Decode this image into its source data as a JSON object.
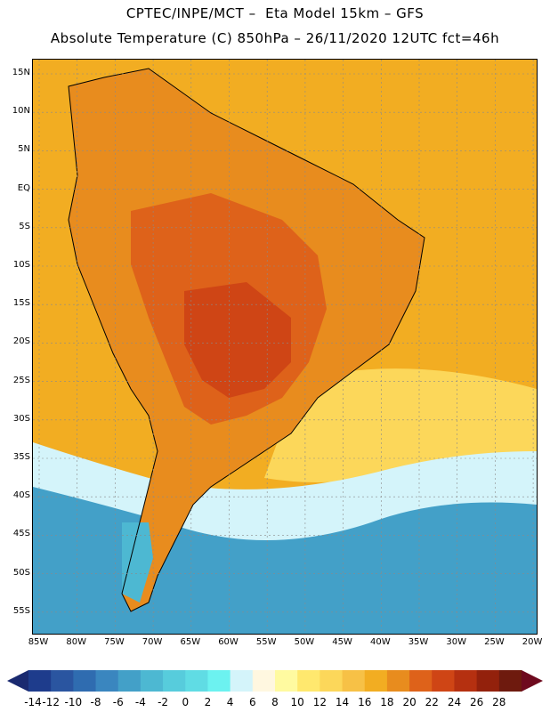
{
  "title_line1": "CPTEC/INPE/MCT –  Eta Model 15km – GFS",
  "title_line2": "Absolute Temperature (C) 850hPa – 26/11/2020 12UTC fct=46h",
  "lat_labels": [
    "15N",
    "10N",
    "5N",
    "EQ",
    "5S",
    "10S",
    "15S",
    "20S",
    "25S",
    "30S",
    "35S",
    "40S",
    "45S",
    "50S",
    "55S"
  ],
  "lon_labels": [
    "85W",
    "80W",
    "75W",
    "70W",
    "65W",
    "60W",
    "55W",
    "50W",
    "45W",
    "40W",
    "35W",
    "30W",
    "25W",
    "20W"
  ],
  "colorbar": {
    "labels": [
      "-14",
      "-12",
      "-10",
      "-8",
      "-6",
      "-4",
      "-2",
      "0",
      "2",
      "4",
      "6",
      "8",
      "10",
      "12",
      "14",
      "16",
      "18",
      "20",
      "22",
      "24",
      "26",
      "28"
    ],
    "colors": [
      "#1e3c8c",
      "#2a55a0",
      "#2f6cb0",
      "#3a86bf",
      "#43a0c8",
      "#4db8d2",
      "#57ccdc",
      "#60dce4",
      "#6cf2f0",
      "#d4f4fa",
      "#fff7e0",
      "#fffaa0",
      "#ffe86e",
      "#fcd75a",
      "#f7c146",
      "#f2ad22",
      "#e88c1e",
      "#de621a",
      "#cf4515",
      "#b53010",
      "#93210c",
      "#6e1a0e"
    ],
    "low_arrow_color": "#1a2a70",
    "high_arrow_color": "#6e0a1e"
  },
  "map": {
    "ocean_warm": "#f2ad22",
    "ocean_mild": "#fcd75a",
    "ocean_cool": "#d4f4fa",
    "ocean_cold": "#43a0c8",
    "land_hot": "#de621a",
    "land_hotter": "#cf4515",
    "land_warm": "#e88c1e",
    "land_cold": "#4db8d2"
  }
}
